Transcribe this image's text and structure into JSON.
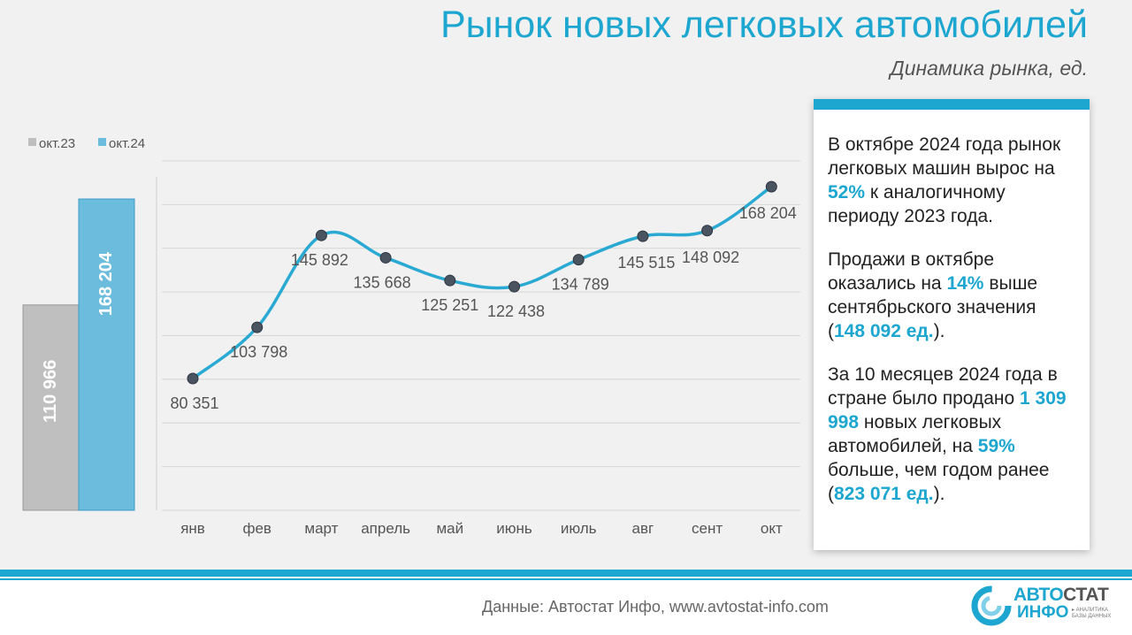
{
  "header": {
    "title": "Рынок новых легковых автомобилей",
    "subtitle": "Динамика рынка, ед."
  },
  "colors": {
    "accent": "#1da6cf",
    "bar_2023": "#bfbfbf",
    "bar_2024": "#6cbcde",
    "line": "#2aa9d2",
    "marker": "#4a5360"
  },
  "chart_data": [
    {
      "type": "bar",
      "legend_position": "top-left",
      "categories": [
        ""
      ],
      "series": [
        {
          "name": "окт.23",
          "values": [
            110966
          ],
          "label": "110 966"
        },
        {
          "name": "окт.24",
          "values": [
            168204
          ],
          "label": "168 204"
        }
      ],
      "ylim": [
        0,
        190000
      ],
      "grid": false
    },
    {
      "type": "line",
      "categories": [
        "янв",
        "фев",
        "март",
        "апрель",
        "май",
        "июнь",
        "июль",
        "авг",
        "сент",
        "окт"
      ],
      "values": [
        80351,
        103798,
        145892,
        135668,
        125251,
        122438,
        134789,
        145515,
        148092,
        168204
      ],
      "labels": [
        "80 351",
        "103 798",
        "145 892",
        "135 668",
        "125 251",
        "122 438",
        "134 789",
        "145 515",
        "148 092",
        "168 204"
      ],
      "ylim": [
        20000,
        180000
      ],
      "grid": true,
      "smooth": true
    }
  ],
  "info": {
    "p1": [
      "В октябре 2024 года рынок легковых машин вырос на ",
      "52%",
      " к аналогичному периоду 2023 года."
    ],
    "p2": [
      "Продажи в октябре оказались на ",
      "14%",
      " выше сентябрьского значения (",
      "148 092 ед.",
      ")."
    ],
    "p3": [
      "За 10 месяцев 2024 года в стране было продано ",
      "1 309 998",
      " новых легковых автомобилей, на ",
      "59%",
      " больше, чем годом ранее (",
      "823 071 ед.",
      ")."
    ]
  },
  "footer": {
    "source": "Данные: Автостат Инфо, www.avtostat-info.com",
    "logo_part1": "АВТО",
    "logo_part2": "СТАТ",
    "logo_line2": "ИНФО",
    "logo_tag1": "▸ АНАЛИТИКА",
    "logo_tag2": "БАЗЫ ДАННЫХ"
  }
}
